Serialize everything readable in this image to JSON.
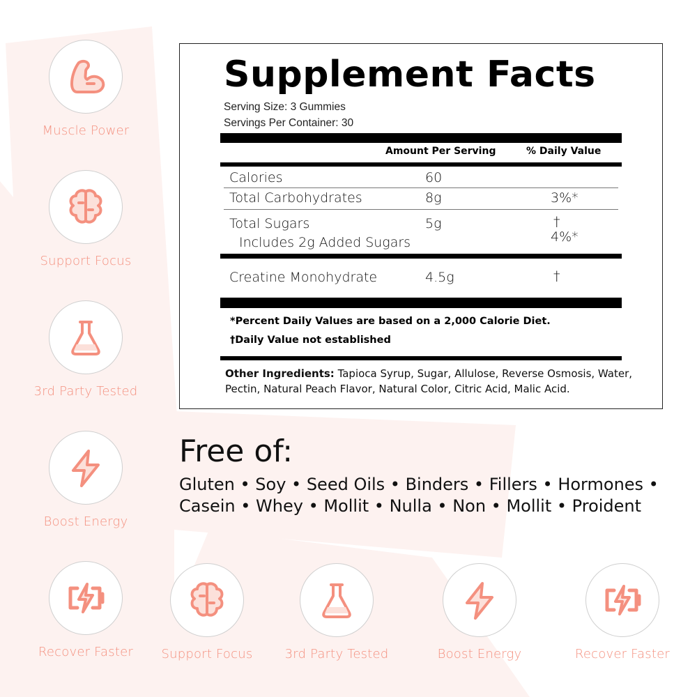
{
  "colors": {
    "accent": "#f4907f",
    "background_shape": "#fdf2f0"
  },
  "side_badges": [
    {
      "icon": "flexed-arm-icon",
      "label": "Muscle Power"
    },
    {
      "icon": "brain-icon",
      "label": "Support Focus"
    },
    {
      "icon": "flask-icon",
      "label": "3rd Party Tested"
    },
    {
      "icon": "lightning-bolt-icon",
      "label": "Boost Energy"
    },
    {
      "icon": "battery-charging-icon",
      "label": "Recover Faster"
    }
  ],
  "bottom_badges": [
    {
      "icon": "brain-icon",
      "label": "Support Focus"
    },
    {
      "icon": "flask-icon",
      "label": "3rd Party Tested"
    },
    {
      "icon": "lightning-bolt-icon",
      "label": "Boost Energy"
    },
    {
      "icon": "battery-charging-icon",
      "label": "Recover Faster"
    }
  ],
  "facts": {
    "title": "Supplement Facts",
    "serving_size": "Serving Size: 3 Gummies",
    "servings_per_container": "Servings Per Container: 30",
    "col_amount": "Amount Per Serving",
    "col_dv": "% Daily Value",
    "rows": [
      {
        "name": "Calories",
        "amount": "60",
        "dv": ""
      },
      {
        "name": "Total Carbohydrates",
        "amount": "8g",
        "dv": "3%*"
      },
      {
        "name": "Total Sugars",
        "amount": "5g",
        "dv": "†"
      },
      {
        "name": "Includes 2g Added Sugars",
        "amount": "",
        "dv": "4%*"
      },
      {
        "name": "Creatine Monohydrate",
        "amount": "4.5g",
        "dv": "†"
      }
    ],
    "footnote1": "*Percent Daily Values are based on a 2,000 Calorie Diet.",
    "footnote2": "†Daily Value not established",
    "other_label": "Other Ingredients:",
    "other_text": " Tapioca Syrup, Sugar, Allulose, Reverse Osmosis, Water, Pectin, Natural Peach Flavor, Natural Color, Citric Acid, Malic Acid."
  },
  "free_of": {
    "title": "Free of:",
    "list": "Gluten • Soy • Seed Oils • Binders • Fillers • Hormones • Casein • Whey • Mollit • Nulla • Non • Mollit • Proident"
  }
}
